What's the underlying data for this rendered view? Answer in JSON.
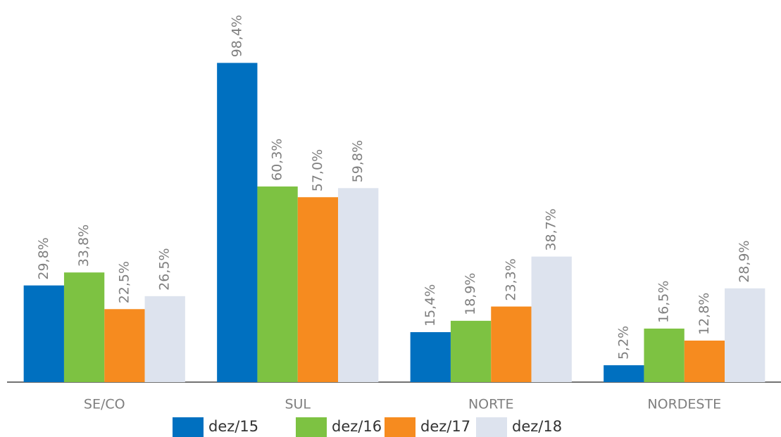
{
  "chart_data": {
    "type": "bar",
    "categories": [
      "SE/CO",
      "SUL",
      "NORTE",
      "NORDESTE"
    ],
    "series": [
      {
        "name": "dez/15",
        "color": "#0070c0",
        "values": [
          29.8,
          98.4,
          15.4,
          5.2
        ],
        "value_labels": [
          "29,8%",
          "98,4%",
          "15,4%",
          "5,2%"
        ]
      },
      {
        "name": "dez/16",
        "color": "#7dc242",
        "values": [
          33.8,
          60.3,
          18.9,
          16.5
        ],
        "value_labels": [
          "33,8%",
          "60,3%",
          "18,9%",
          "16,5%"
        ]
      },
      {
        "name": "dez/17",
        "color": "#f68b1f",
        "values": [
          22.5,
          57.0,
          23.3,
          12.8
        ],
        "value_labels": [
          "22,5%",
          "57,0%",
          "23,3%",
          "12,8%"
        ]
      },
      {
        "name": "dez/18",
        "color": "#dde3ee",
        "values": [
          26.5,
          59.8,
          38.7,
          28.9
        ],
        "value_labels": [
          "26,5%",
          "59,8%",
          "38,7%",
          "28,9%"
        ]
      }
    ],
    "ylim": [
      0,
      100
    ],
    "legend": "bottom"
  }
}
